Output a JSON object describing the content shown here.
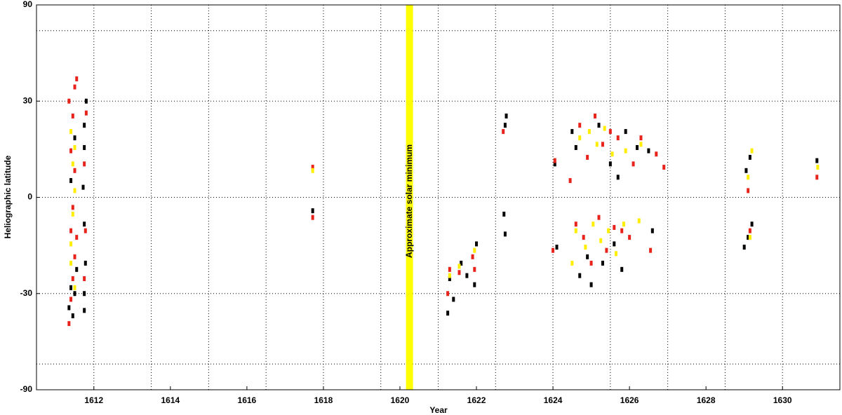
{
  "chart_data": {
    "type": "scatter",
    "xlabel": "Year",
    "ylabel": "Heliographic latitude",
    "xlim": [
      1610.5,
      1631.5
    ],
    "ylim": [
      -90,
      90
    ],
    "yscale": "sine",
    "xticks": [
      1612,
      1614,
      1616,
      1618,
      1620,
      1622,
      1624,
      1626,
      1628,
      1630
    ],
    "yticks": [
      -90,
      -30,
      0,
      30,
      90
    ],
    "xgrid": [
      1612,
      1613.5,
      1615,
      1616.5,
      1618,
      1619.5,
      1621,
      1622.5,
      1624,
      1625.5,
      1627,
      1628.5,
      1630
    ],
    "ygrid": [
      -60,
      60
    ],
    "grid": true,
    "minimum_band": {
      "x": 1620.25,
      "label": "Approximate solar minimum",
      "color": "#ffff00"
    },
    "series": [
      {
        "color": "#000000",
        "x": [
          1611.35,
          1611.4,
          1611.45,
          1611.5,
          1611.55,
          1611.4,
          1611.5,
          1611.75,
          1611.75,
          1611.78,
          1611.75,
          1611.75,
          1611.75,
          1611.8,
          1611.72,
          1617.72,
          1621.25,
          1621.3,
          1621.4,
          1621.6,
          1621.75,
          1621.95,
          1622.0,
          1622.72,
          1622.75,
          1622.75,
          1622.78,
          1624.1,
          1624.05,
          1624.5,
          1624.6,
          1624.7,
          1624.9,
          1625.0,
          1625.2,
          1625.3,
          1625.5,
          1625.6,
          1625.7,
          1625.8,
          1625.9,
          1626.2,
          1626.5,
          1626.6,
          1629.0,
          1629.1,
          1629.2,
          1629.05,
          1629.15,
          1630.9
        ],
        "values": [
          -35,
          -28,
          -38,
          -30,
          -22,
          5,
          18,
          -36,
          -30,
          -20,
          -8,
          15,
          22,
          30,
          3,
          -4,
          -37,
          -25,
          -32,
          -20,
          -24,
          -27,
          -14,
          -5,
          -11,
          22,
          25,
          -15,
          10,
          20,
          15,
          -24,
          -18,
          -27,
          22,
          -20,
          10,
          -14,
          6,
          -22,
          20,
          15,
          14,
          -10,
          -15,
          -12,
          -8,
          8,
          12,
          11
        ]
      },
      {
        "color": "#e8231c",
        "x": [
          1611.35,
          1611.4,
          1611.45,
          1611.5,
          1611.4,
          1611.45,
          1611.5,
          1611.35,
          1611.45,
          1611.55,
          1611.5,
          1611.4,
          1611.55,
          1611.75,
          1611.78,
          1611.75,
          1611.8,
          1617.72,
          1617.72,
          1621.25,
          1621.3,
          1621.55,
          1621.9,
          1621.95,
          1622.7,
          1624.0,
          1624.05,
          1624.45,
          1624.6,
          1624.7,
          1624.8,
          1624.9,
          1625.0,
          1625.1,
          1625.2,
          1625.3,
          1625.4,
          1625.5,
          1625.6,
          1625.7,
          1625.8,
          1626.0,
          1626.1,
          1626.3,
          1626.55,
          1626.7,
          1626.9,
          1629.1,
          1629.15,
          1630.9
        ],
        "values": [
          -41,
          -32,
          -25,
          -18,
          -10,
          -3,
          8,
          30,
          25,
          38,
          35,
          14,
          -12,
          -25,
          -10,
          10,
          26,
          9,
          -6,
          -30,
          -22,
          -23,
          -18,
          -22,
          20,
          -16,
          11,
          5,
          -8,
          22,
          -12,
          12,
          -20,
          25,
          -6,
          16,
          -16,
          20,
          -9,
          18,
          -10,
          -12,
          10,
          18,
          -16,
          13,
          9,
          2,
          -10,
          6
        ]
      },
      {
        "color": "#ffee00",
        "x": [
          1611.4,
          1611.45,
          1611.45,
          1611.5,
          1611.4,
          1611.5,
          1611.4,
          1611.5,
          1617.72,
          1621.3,
          1621.55,
          1621.95,
          1624.5,
          1624.6,
          1624.7,
          1624.85,
          1624.95,
          1625.05,
          1625.15,
          1625.25,
          1625.35,
          1625.45,
          1625.55,
          1625.65,
          1625.85,
          1625.9,
          1626.25,
          1626.3,
          1629.1,
          1629.15,
          1629.2,
          1630.92
        ],
        "values": [
          -20,
          -5,
          10,
          2,
          20,
          -28,
          -14,
          15,
          8,
          -24,
          -21,
          -16,
          -20,
          -10,
          18,
          -15,
          20,
          -8,
          16,
          -13,
          21,
          -10,
          13,
          -17,
          -8,
          14,
          -7,
          16,
          6,
          -12,
          14,
          9
        ]
      }
    ]
  }
}
